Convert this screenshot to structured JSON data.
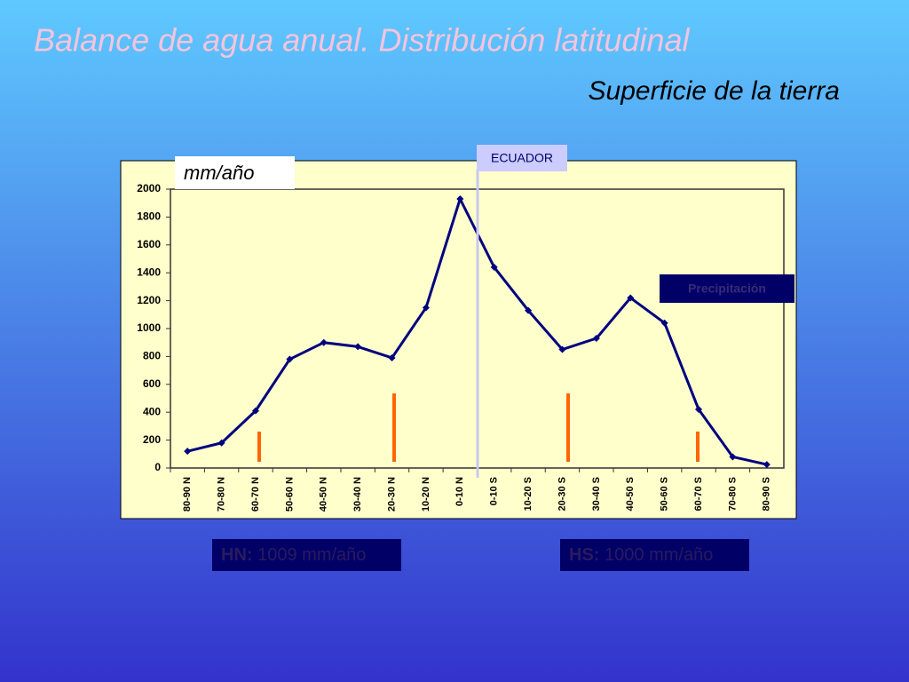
{
  "chart_data": {
    "type": "line",
    "title": "Balance de agua anual. Distribución latitudinal",
    "subtitle": "Superficie de la tierra",
    "y_label": "mm/año",
    "annotation": "ECUADOR",
    "categories": [
      "80-90 N",
      "70-80 N",
      "60-70 N",
      "50-60 N",
      "40-50 N",
      "30-40 N",
      "20-30 N",
      "10-20 N",
      "0-10 N",
      "0-10 S",
      "10-20 S",
      "20-30 S",
      "30-40 S",
      "40-50 S",
      "50-60 S",
      "60-70 S",
      "70-80 S",
      "80-90 S"
    ],
    "series": [
      {
        "name": "Precipitación",
        "color": "#000080",
        "values": [
          120,
          180,
          410,
          780,
          900,
          870,
          790,
          1150,
          1930,
          1440,
          1130,
          850,
          930,
          1220,
          1040,
          420,
          80,
          25
        ]
      }
    ],
    "ylim": [
      0,
      2000
    ],
    "yticks": [
      0,
      200,
      400,
      600,
      800,
      1000,
      1200,
      1400,
      1600,
      1800,
      2000
    ],
    "notes": [
      {
        "label": "HN:",
        "text": "1009 mm/año"
      },
      {
        "label": "HS:",
        "text": "1000 mm/año"
      }
    ]
  }
}
